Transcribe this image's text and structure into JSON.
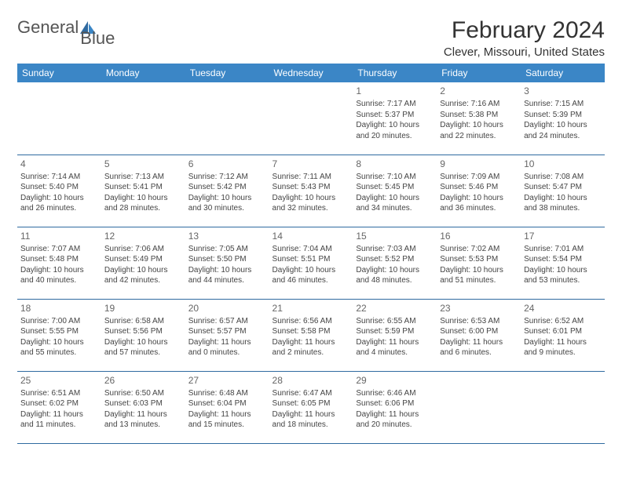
{
  "logo": {
    "text1": "General",
    "text2": "Blue"
  },
  "title": "February 2024",
  "location": "Clever, Missouri, United States",
  "header_bg": "#3b86c6",
  "border_color": "#2f6aa0",
  "weekdays": [
    "Sunday",
    "Monday",
    "Tuesday",
    "Wednesday",
    "Thursday",
    "Friday",
    "Saturday"
  ],
  "weeks": [
    [
      null,
      null,
      null,
      null,
      {
        "n": "1",
        "sr": "7:17 AM",
        "ss": "5:37 PM",
        "dl": "10 hours and 20 minutes."
      },
      {
        "n": "2",
        "sr": "7:16 AM",
        "ss": "5:38 PM",
        "dl": "10 hours and 22 minutes."
      },
      {
        "n": "3",
        "sr": "7:15 AM",
        "ss": "5:39 PM",
        "dl": "10 hours and 24 minutes."
      }
    ],
    [
      {
        "n": "4",
        "sr": "7:14 AM",
        "ss": "5:40 PM",
        "dl": "10 hours and 26 minutes."
      },
      {
        "n": "5",
        "sr": "7:13 AM",
        "ss": "5:41 PM",
        "dl": "10 hours and 28 minutes."
      },
      {
        "n": "6",
        "sr": "7:12 AM",
        "ss": "5:42 PM",
        "dl": "10 hours and 30 minutes."
      },
      {
        "n": "7",
        "sr": "7:11 AM",
        "ss": "5:43 PM",
        "dl": "10 hours and 32 minutes."
      },
      {
        "n": "8",
        "sr": "7:10 AM",
        "ss": "5:45 PM",
        "dl": "10 hours and 34 minutes."
      },
      {
        "n": "9",
        "sr": "7:09 AM",
        "ss": "5:46 PM",
        "dl": "10 hours and 36 minutes."
      },
      {
        "n": "10",
        "sr": "7:08 AM",
        "ss": "5:47 PM",
        "dl": "10 hours and 38 minutes."
      }
    ],
    [
      {
        "n": "11",
        "sr": "7:07 AM",
        "ss": "5:48 PM",
        "dl": "10 hours and 40 minutes."
      },
      {
        "n": "12",
        "sr": "7:06 AM",
        "ss": "5:49 PM",
        "dl": "10 hours and 42 minutes."
      },
      {
        "n": "13",
        "sr": "7:05 AM",
        "ss": "5:50 PM",
        "dl": "10 hours and 44 minutes."
      },
      {
        "n": "14",
        "sr": "7:04 AM",
        "ss": "5:51 PM",
        "dl": "10 hours and 46 minutes."
      },
      {
        "n": "15",
        "sr": "7:03 AM",
        "ss": "5:52 PM",
        "dl": "10 hours and 48 minutes."
      },
      {
        "n": "16",
        "sr": "7:02 AM",
        "ss": "5:53 PM",
        "dl": "10 hours and 51 minutes."
      },
      {
        "n": "17",
        "sr": "7:01 AM",
        "ss": "5:54 PM",
        "dl": "10 hours and 53 minutes."
      }
    ],
    [
      {
        "n": "18",
        "sr": "7:00 AM",
        "ss": "5:55 PM",
        "dl": "10 hours and 55 minutes."
      },
      {
        "n": "19",
        "sr": "6:58 AM",
        "ss": "5:56 PM",
        "dl": "10 hours and 57 minutes."
      },
      {
        "n": "20",
        "sr": "6:57 AM",
        "ss": "5:57 PM",
        "dl": "11 hours and 0 minutes."
      },
      {
        "n": "21",
        "sr": "6:56 AM",
        "ss": "5:58 PM",
        "dl": "11 hours and 2 minutes."
      },
      {
        "n": "22",
        "sr": "6:55 AM",
        "ss": "5:59 PM",
        "dl": "11 hours and 4 minutes."
      },
      {
        "n": "23",
        "sr": "6:53 AM",
        "ss": "6:00 PM",
        "dl": "11 hours and 6 minutes."
      },
      {
        "n": "24",
        "sr": "6:52 AM",
        "ss": "6:01 PM",
        "dl": "11 hours and 9 minutes."
      }
    ],
    [
      {
        "n": "25",
        "sr": "6:51 AM",
        "ss": "6:02 PM",
        "dl": "11 hours and 11 minutes."
      },
      {
        "n": "26",
        "sr": "6:50 AM",
        "ss": "6:03 PM",
        "dl": "11 hours and 13 minutes."
      },
      {
        "n": "27",
        "sr": "6:48 AM",
        "ss": "6:04 PM",
        "dl": "11 hours and 15 minutes."
      },
      {
        "n": "28",
        "sr": "6:47 AM",
        "ss": "6:05 PM",
        "dl": "11 hours and 18 minutes."
      },
      {
        "n": "29",
        "sr": "6:46 AM",
        "ss": "6:06 PM",
        "dl": "11 hours and 20 minutes."
      },
      null,
      null
    ]
  ],
  "labels": {
    "sunrise": "Sunrise:",
    "sunset": "Sunset:",
    "daylight": "Daylight:"
  }
}
